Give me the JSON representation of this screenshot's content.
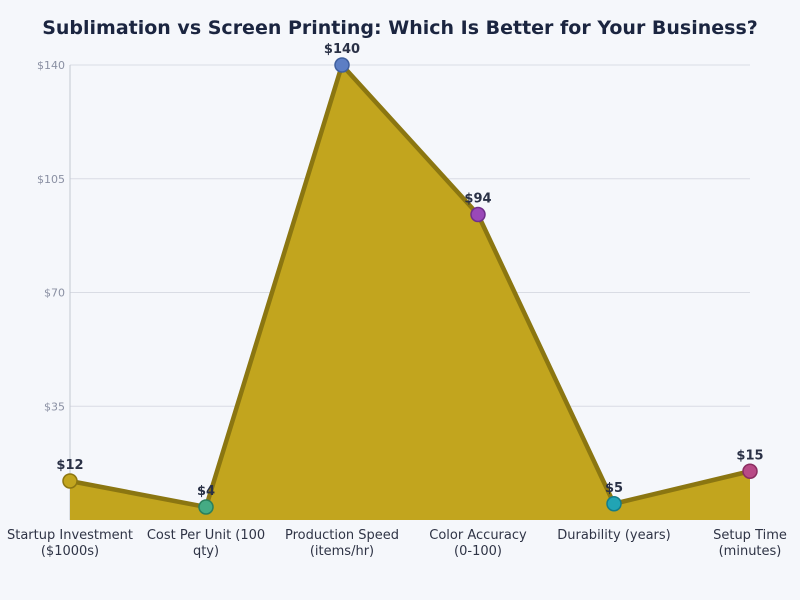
{
  "chart_data": {
    "type": "area",
    "title": "Sublimation vs Screen Printing: Which Is Better for Your Business?",
    "xlabel": "",
    "ylabel": "",
    "categories": [
      [
        "Startup Investment",
        "($1000s)"
      ],
      [
        "Cost Per Unit (100",
        "qty)"
      ],
      [
        "Production Speed",
        "(items/hr)"
      ],
      [
        "Color Accuracy",
        "(0-100)"
      ],
      [
        "Durability (years)"
      ],
      [
        "Setup Time",
        "(minutes)"
      ]
    ],
    "values": [
      12,
      4,
      140,
      94,
      5,
      15
    ],
    "data_labels": [
      "$12",
      "$4",
      "$140",
      "$94",
      "$5",
      "$15"
    ],
    "marker_colors": [
      "#c2a51e",
      "#45ab84",
      "#5c7ec4",
      "#9a48b8",
      "#21a4b4",
      "#b84a86"
    ],
    "marker_edge_colors": [
      "#8c7612",
      "#2a7f5c",
      "#3f5f9e",
      "#6f2f8a",
      "#137c8a",
      "#8a2d60"
    ],
    "fill_color": "#c2a51e",
    "line_color": "#8b7611",
    "ylim": [
      0,
      140
    ],
    "yticks": [
      35,
      70,
      105,
      140
    ],
    "ytick_labels": [
      "$35",
      "$70",
      "$105",
      "$140"
    ],
    "grid": true,
    "legend": null
  }
}
